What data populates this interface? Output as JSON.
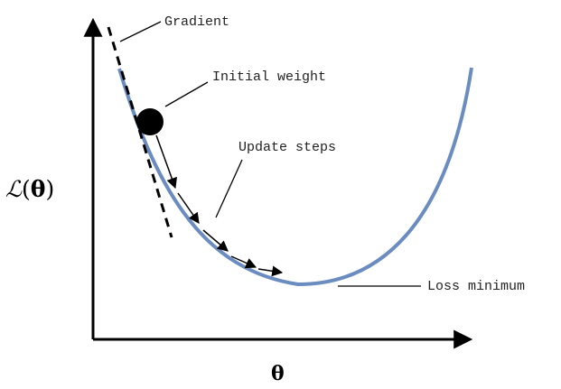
{
  "labels": {
    "gradient": "Gradient",
    "initial_weight": "Initial weight",
    "update_steps": "Update steps",
    "loss_minimum": "Loss minimum",
    "y_axis_script": "ℒ",
    "y_axis_paren_open": "(",
    "y_axis_theta": "θ",
    "y_axis_paren_close": ")",
    "x_axis": "θ"
  },
  "colors": {
    "curve": "#6b8cc0",
    "axis": "#000000",
    "ball": "#000000",
    "arrows": "#000000",
    "tangent": "#000000"
  },
  "update_step_count": 5
}
